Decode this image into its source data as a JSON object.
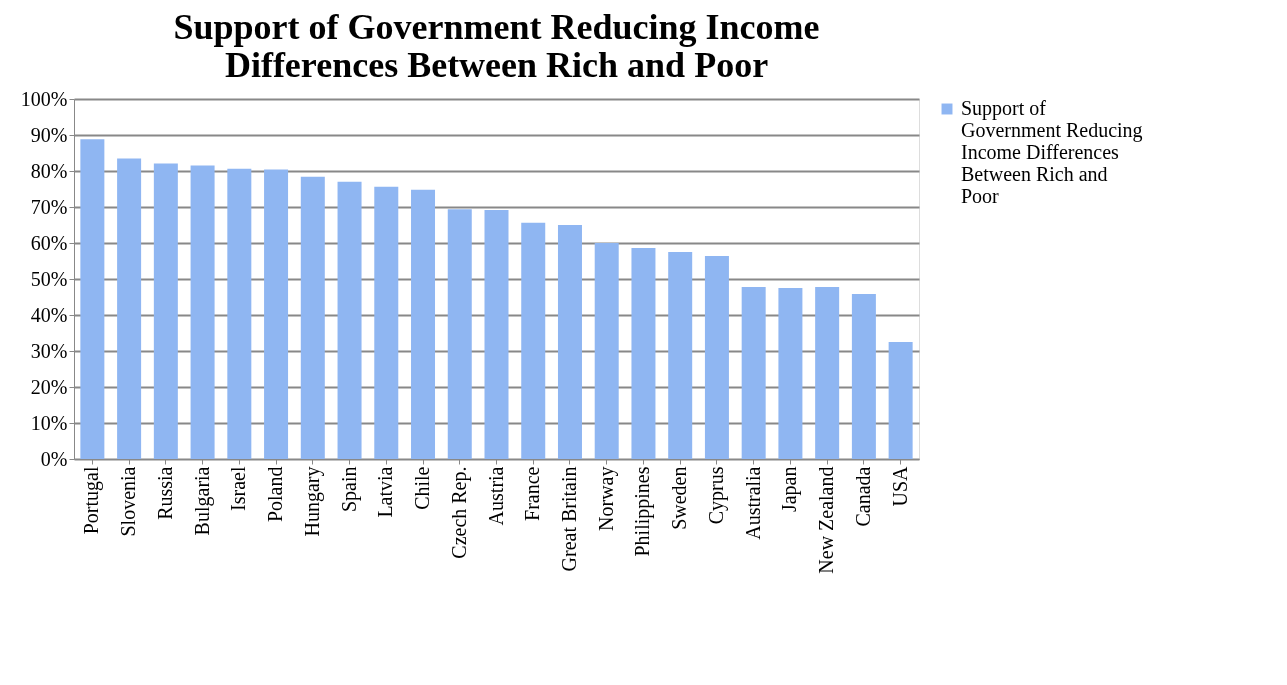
{
  "chart_data": {
    "type": "bar",
    "title": "Support of Government Reducing Income Differences Between Rich and Poor",
    "categories": [
      "Portugal",
      "Slovenia",
      "Russia",
      "Bulgaria",
      "Israel",
      "Poland",
      "Hungary",
      "Spain",
      "Latvia",
      "Chile",
      "Czech Rep.",
      "Austria",
      "France",
      "Great Britain",
      "Norway",
      "Philippines",
      "Sweden",
      "Cyprus",
      "Australia",
      "Japan",
      "New Zealand",
      "Canada",
      "USA"
    ],
    "series": [
      {
        "name": "Support of Government Reducing Income Differences Between Rich and Poor",
        "color": "#8fb6f2",
        "values": [
          88.8,
          83.5,
          82.1,
          81.5,
          80.6,
          80.4,
          78.4,
          77.0,
          75.6,
          74.8,
          69.4,
          69.2,
          65.6,
          65.0,
          60.0,
          58.6,
          57.5,
          56.4,
          47.8,
          47.5,
          47.8,
          45.8,
          32.5
        ]
      }
    ],
    "ylim": [
      0,
      100
    ],
    "yticks": [
      {
        "value": 0,
        "label": "0%"
      },
      {
        "value": 10,
        "label": "10%"
      },
      {
        "value": 20,
        "label": "20%"
      },
      {
        "value": 30,
        "label": "30%"
      },
      {
        "value": 40,
        "label": "40%"
      },
      {
        "value": 50,
        "label": "50%"
      },
      {
        "value": 60,
        "label": "60%"
      },
      {
        "value": 70,
        "label": "70%"
      },
      {
        "value": 80,
        "label": "80%"
      },
      {
        "value": 90,
        "label": "90%"
      },
      {
        "value": 100,
        "label": "100%"
      }
    ],
    "grid": "y",
    "legend": "right"
  }
}
